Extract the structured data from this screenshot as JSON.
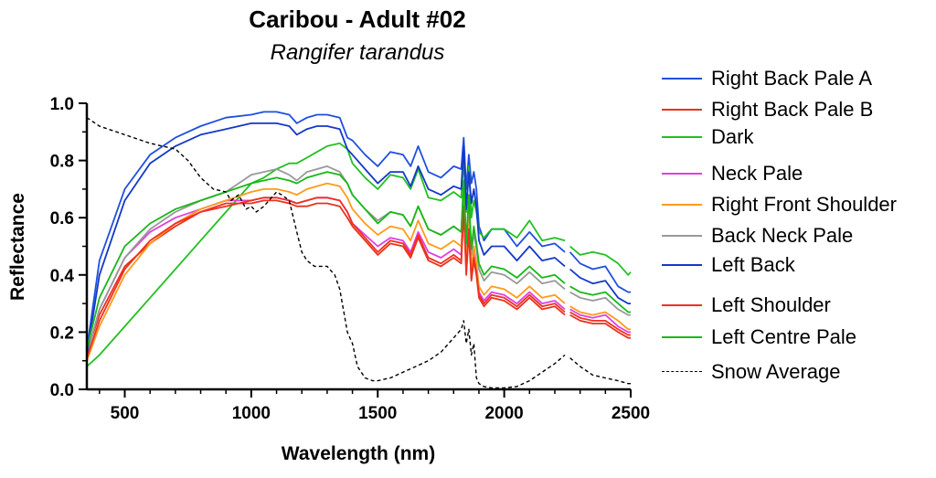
{
  "chart_data": {
    "type": "line",
    "title": "Caribou - Adult #02",
    "subtitle": "Rangifer tarandus",
    "xlabel": "Wavelength (nm)",
    "ylabel": "Reflectance",
    "xlim": [
      350,
      2500
    ],
    "ylim": [
      0,
      1.0
    ],
    "xticks": [
      500,
      1000,
      1500,
      2000,
      2500
    ],
    "yticks": [
      0.0,
      0.2,
      0.4,
      0.6,
      0.8,
      1.0
    ],
    "xtick_labels": [
      "500",
      "1000",
      "1500",
      "2000",
      "2500"
    ],
    "ytick_labels": [
      "0.0",
      "0.2",
      "0.4",
      "0.6",
      "0.8",
      "1.0"
    ],
    "gap": [
      2240,
      2260
    ],
    "legend_position": "right",
    "series": [
      {
        "name": "Right Back Pale A",
        "color": "#1f4fe0",
        "dash": false,
        "x": [
          350,
          400,
          500,
          600,
          700,
          800,
          900,
          1000,
          1050,
          1100,
          1150,
          1180,
          1220,
          1260,
          1300,
          1350,
          1380,
          1400,
          1450,
          1500,
          1550,
          1600,
          1630,
          1660,
          1700,
          1750,
          1800,
          1830,
          1840,
          1850,
          1860,
          1870,
          1880,
          1890,
          1900,
          1920,
          1950,
          2000,
          2050,
          2100,
          2150,
          2200,
          2240,
          2260,
          2300,
          2350,
          2400,
          2450,
          2490,
          2500
        ],
        "y": [
          0.14,
          0.45,
          0.7,
          0.82,
          0.88,
          0.92,
          0.95,
          0.96,
          0.97,
          0.97,
          0.96,
          0.93,
          0.95,
          0.96,
          0.96,
          0.95,
          0.88,
          0.87,
          0.82,
          0.78,
          0.83,
          0.82,
          0.78,
          0.85,
          0.76,
          0.74,
          0.78,
          0.77,
          0.88,
          0.7,
          0.82,
          0.72,
          0.76,
          0.7,
          0.57,
          0.52,
          0.56,
          0.56,
          0.5,
          0.55,
          0.5,
          0.51,
          0.48,
          0.48,
          0.44,
          0.42,
          0.43,
          0.36,
          0.34,
          0.34
        ]
      },
      {
        "name": "Right Back Pale B",
        "color": "#e8331c",
        "dash": false,
        "x": [
          350,
          400,
          500,
          600,
          700,
          800,
          900,
          1000,
          1050,
          1100,
          1150,
          1180,
          1220,
          1260,
          1300,
          1350,
          1380,
          1400,
          1450,
          1500,
          1550,
          1600,
          1630,
          1660,
          1700,
          1750,
          1800,
          1830,
          1840,
          1850,
          1860,
          1870,
          1880,
          1890,
          1900,
          1920,
          1950,
          2000,
          2050,
          2100,
          2150,
          2200,
          2240,
          2260,
          2300,
          2350,
          2400,
          2450,
          2490,
          2500
        ],
        "y": [
          0.13,
          0.26,
          0.43,
          0.51,
          0.57,
          0.62,
          0.65,
          0.65,
          0.66,
          0.66,
          0.65,
          0.64,
          0.64,
          0.65,
          0.65,
          0.64,
          0.6,
          0.57,
          0.52,
          0.47,
          0.51,
          0.5,
          0.46,
          0.53,
          0.45,
          0.43,
          0.46,
          0.44,
          0.63,
          0.4,
          0.55,
          0.38,
          0.45,
          0.4,
          0.32,
          0.29,
          0.32,
          0.31,
          0.28,
          0.32,
          0.28,
          0.29,
          0.26,
          0.26,
          0.24,
          0.23,
          0.23,
          0.2,
          0.18,
          0.18
        ]
      },
      {
        "name": "Dark",
        "color": "#22c022",
        "dash": false,
        "x": [
          350,
          400,
          500,
          600,
          700,
          800,
          900,
          1000,
          1050,
          1100,
          1150,
          1180,
          1220,
          1260,
          1300,
          1350,
          1380,
          1400,
          1450,
          1500,
          1550,
          1600,
          1630,
          1660,
          1700,
          1750,
          1800,
          1830,
          1840,
          1850,
          1860,
          1870,
          1880,
          1890,
          1900,
          1920,
          1950,
          2000,
          2050,
          2100,
          2150,
          2200,
          2240,
          2260,
          2300,
          2350,
          2400,
          2450,
          2490,
          2500
        ],
        "y": [
          0.08,
          0.12,
          0.22,
          0.32,
          0.42,
          0.52,
          0.62,
          0.72,
          0.74,
          0.77,
          0.79,
          0.79,
          0.81,
          0.83,
          0.85,
          0.86,
          0.84,
          0.79,
          0.74,
          0.7,
          0.75,
          0.74,
          0.7,
          0.77,
          0.67,
          0.66,
          0.69,
          0.67,
          0.8,
          0.62,
          0.78,
          0.6,
          0.66,
          0.62,
          0.55,
          0.53,
          0.56,
          0.56,
          0.53,
          0.59,
          0.52,
          0.53,
          0.52,
          0.5,
          0.47,
          0.48,
          0.47,
          0.44,
          0.4,
          0.41
        ]
      },
      {
        "name": "Neck Pale",
        "color": "#e040e0",
        "dash": false,
        "x": [
          350,
          400,
          500,
          600,
          700,
          800,
          900,
          1000,
          1050,
          1100,
          1150,
          1180,
          1220,
          1260,
          1300,
          1350,
          1380,
          1400,
          1450,
          1500,
          1550,
          1600,
          1630,
          1660,
          1700,
          1750,
          1800,
          1830,
          1840,
          1850,
          1860,
          1870,
          1880,
          1890,
          1900,
          1920,
          1950,
          2000,
          2050,
          2100,
          2150,
          2200,
          2240,
          2260,
          2300,
          2350,
          2400,
          2450,
          2490,
          2500
        ],
        "y": [
          0.12,
          0.28,
          0.46,
          0.55,
          0.6,
          0.63,
          0.66,
          0.66,
          0.67,
          0.67,
          0.66,
          0.65,
          0.66,
          0.67,
          0.67,
          0.66,
          0.62,
          0.58,
          0.54,
          0.5,
          0.53,
          0.52,
          0.48,
          0.55,
          0.48,
          0.46,
          0.49,
          0.47,
          0.66,
          0.43,
          0.58,
          0.4,
          0.48,
          0.42,
          0.34,
          0.31,
          0.34,
          0.33,
          0.3,
          0.34,
          0.3,
          0.31,
          0.28,
          0.28,
          0.26,
          0.25,
          0.26,
          0.22,
          0.2,
          0.2
        ]
      },
      {
        "name": "Right Front Shoulder",
        "color": "#ff9a1a",
        "dash": false,
        "x": [
          350,
          400,
          500,
          600,
          700,
          800,
          900,
          1000,
          1050,
          1100,
          1150,
          1180,
          1220,
          1260,
          1300,
          1350,
          1380,
          1400,
          1450,
          1500,
          1550,
          1600,
          1630,
          1660,
          1700,
          1750,
          1800,
          1830,
          1840,
          1850,
          1860,
          1870,
          1880,
          1890,
          1900,
          1920,
          1950,
          2000,
          2050,
          2100,
          2150,
          2200,
          2240,
          2260,
          2300,
          2350,
          2400,
          2450,
          2490,
          2500
        ],
        "y": [
          0.1,
          0.22,
          0.4,
          0.51,
          0.58,
          0.63,
          0.66,
          0.69,
          0.7,
          0.7,
          0.69,
          0.68,
          0.7,
          0.71,
          0.72,
          0.71,
          0.67,
          0.63,
          0.58,
          0.54,
          0.57,
          0.56,
          0.52,
          0.59,
          0.51,
          0.49,
          0.52,
          0.5,
          0.68,
          0.45,
          0.6,
          0.42,
          0.5,
          0.44,
          0.36,
          0.33,
          0.36,
          0.35,
          0.32,
          0.36,
          0.32,
          0.33,
          0.3,
          0.29,
          0.27,
          0.26,
          0.27,
          0.24,
          0.21,
          0.21
        ]
      },
      {
        "name": "Back Neck Pale",
        "color": "#999999",
        "dash": false,
        "x": [
          350,
          400,
          500,
          600,
          700,
          800,
          900,
          1000,
          1050,
          1100,
          1150,
          1180,
          1220,
          1260,
          1300,
          1350,
          1380,
          1400,
          1450,
          1500,
          1550,
          1600,
          1630,
          1660,
          1700,
          1750,
          1800,
          1830,
          1840,
          1850,
          1860,
          1870,
          1880,
          1890,
          1900,
          1920,
          1950,
          2000,
          2050,
          2100,
          2150,
          2200,
          2240,
          2260,
          2300,
          2350,
          2400,
          2450,
          2490,
          2500
        ],
        "y": [
          0.12,
          0.28,
          0.46,
          0.56,
          0.62,
          0.66,
          0.69,
          0.75,
          0.76,
          0.77,
          0.75,
          0.73,
          0.76,
          0.77,
          0.78,
          0.76,
          0.72,
          0.68,
          0.63,
          0.59,
          0.62,
          0.61,
          0.57,
          0.64,
          0.56,
          0.54,
          0.57,
          0.55,
          0.72,
          0.5,
          0.66,
          0.47,
          0.55,
          0.49,
          0.42,
          0.38,
          0.41,
          0.4,
          0.37,
          0.41,
          0.37,
          0.38,
          0.35,
          0.34,
          0.32,
          0.31,
          0.32,
          0.28,
          0.26,
          0.26
        ]
      },
      {
        "name": "Left Back",
        "color": "#1538c8",
        "dash": false,
        "x": [
          350,
          400,
          500,
          600,
          700,
          800,
          900,
          1000,
          1050,
          1100,
          1150,
          1180,
          1220,
          1260,
          1300,
          1350,
          1380,
          1400,
          1450,
          1500,
          1550,
          1600,
          1630,
          1660,
          1700,
          1750,
          1800,
          1830,
          1840,
          1850,
          1860,
          1870,
          1880,
          1890,
          1900,
          1920,
          1950,
          2000,
          2050,
          2100,
          2150,
          2200,
          2240,
          2260,
          2300,
          2350,
          2400,
          2450,
          2490,
          2500
        ],
        "y": [
          0.12,
          0.4,
          0.66,
          0.79,
          0.85,
          0.89,
          0.91,
          0.93,
          0.93,
          0.93,
          0.92,
          0.89,
          0.91,
          0.92,
          0.92,
          0.91,
          0.84,
          0.82,
          0.77,
          0.72,
          0.76,
          0.76,
          0.71,
          0.78,
          0.7,
          0.68,
          0.71,
          0.7,
          0.85,
          0.63,
          0.76,
          0.65,
          0.7,
          0.64,
          0.52,
          0.47,
          0.5,
          0.5,
          0.45,
          0.5,
          0.45,
          0.46,
          0.43,
          0.42,
          0.39,
          0.37,
          0.38,
          0.32,
          0.3,
          0.3
        ]
      },
      {
        "name": "Left Shoulder",
        "color": "#f03020",
        "dash": false,
        "x": [
          350,
          400,
          500,
          600,
          700,
          800,
          900,
          1000,
          1050,
          1100,
          1150,
          1180,
          1220,
          1260,
          1300,
          1350,
          1380,
          1400,
          1450,
          1500,
          1550,
          1600,
          1630,
          1660,
          1700,
          1750,
          1800,
          1830,
          1840,
          1850,
          1860,
          1870,
          1880,
          1890,
          1900,
          1920,
          1950,
          2000,
          2050,
          2100,
          2150,
          2200,
          2240,
          2260,
          2300,
          2350,
          2400,
          2450,
          2490,
          2500
        ],
        "y": [
          0.11,
          0.24,
          0.42,
          0.52,
          0.58,
          0.62,
          0.64,
          0.66,
          0.67,
          0.67,
          0.66,
          0.65,
          0.66,
          0.67,
          0.67,
          0.66,
          0.62,
          0.58,
          0.53,
          0.48,
          0.52,
          0.51,
          0.47,
          0.54,
          0.46,
          0.44,
          0.47,
          0.45,
          0.64,
          0.41,
          0.56,
          0.39,
          0.46,
          0.41,
          0.33,
          0.3,
          0.33,
          0.32,
          0.29,
          0.33,
          0.29,
          0.3,
          0.27,
          0.27,
          0.25,
          0.24,
          0.24,
          0.21,
          0.19,
          0.19
        ]
      },
      {
        "name": "Left Centre Pale",
        "color": "#18b818",
        "dash": false,
        "x": [
          350,
          400,
          500,
          600,
          700,
          800,
          900,
          1000,
          1050,
          1100,
          1150,
          1180,
          1220,
          1260,
          1300,
          1350,
          1380,
          1400,
          1450,
          1500,
          1550,
          1600,
          1630,
          1660,
          1700,
          1750,
          1800,
          1830,
          1840,
          1850,
          1860,
          1870,
          1880,
          1890,
          1900,
          1920,
          1950,
          2000,
          2050,
          2100,
          2150,
          2200,
          2240,
          2260,
          2300,
          2350,
          2400,
          2450,
          2490,
          2500
        ],
        "y": [
          0.14,
          0.32,
          0.5,
          0.58,
          0.63,
          0.66,
          0.69,
          0.72,
          0.73,
          0.74,
          0.73,
          0.72,
          0.74,
          0.75,
          0.76,
          0.75,
          0.72,
          0.68,
          0.63,
          0.58,
          0.62,
          0.61,
          0.57,
          0.64,
          0.56,
          0.54,
          0.57,
          0.55,
          0.73,
          0.51,
          0.68,
          0.49,
          0.57,
          0.51,
          0.44,
          0.4,
          0.43,
          0.42,
          0.39,
          0.43,
          0.39,
          0.4,
          0.37,
          0.36,
          0.34,
          0.33,
          0.34,
          0.3,
          0.27,
          0.27
        ]
      },
      {
        "name": "Snow Average",
        "color": "#000000",
        "dash": true,
        "x": [
          350,
          400,
          500,
          600,
          700,
          750,
          800,
          850,
          900,
          920,
          950,
          980,
          1000,
          1020,
          1050,
          1080,
          1100,
          1120,
          1150,
          1180,
          1200,
          1220,
          1250,
          1300,
          1330,
          1350,
          1370,
          1380,
          1400,
          1420,
          1450,
          1480,
          1500,
          1550,
          1600,
          1650,
          1700,
          1750,
          1800,
          1820,
          1830,
          1840,
          1850,
          1860,
          1870,
          1880,
          1890,
          1900,
          1920,
          1950,
          2000,
          2050,
          2100,
          2150,
          2200,
          2240,
          2260,
          2300,
          2350,
          2400,
          2450,
          2490,
          2500
        ],
        "y": [
          0.95,
          0.92,
          0.89,
          0.86,
          0.84,
          0.8,
          0.74,
          0.7,
          0.69,
          0.66,
          0.68,
          0.63,
          0.64,
          0.62,
          0.64,
          0.67,
          0.69,
          0.68,
          0.66,
          0.55,
          0.48,
          0.45,
          0.43,
          0.43,
          0.4,
          0.35,
          0.25,
          0.2,
          0.16,
          0.08,
          0.04,
          0.03,
          0.03,
          0.04,
          0.06,
          0.08,
          0.1,
          0.13,
          0.18,
          0.2,
          0.21,
          0.24,
          0.16,
          0.21,
          0.12,
          0.16,
          0.04,
          0.02,
          0.01,
          0.005,
          0.005,
          0.01,
          0.03,
          0.06,
          0.09,
          0.12,
          0.11,
          0.08,
          0.05,
          0.04,
          0.03,
          0.02,
          0.02
        ]
      }
    ]
  }
}
